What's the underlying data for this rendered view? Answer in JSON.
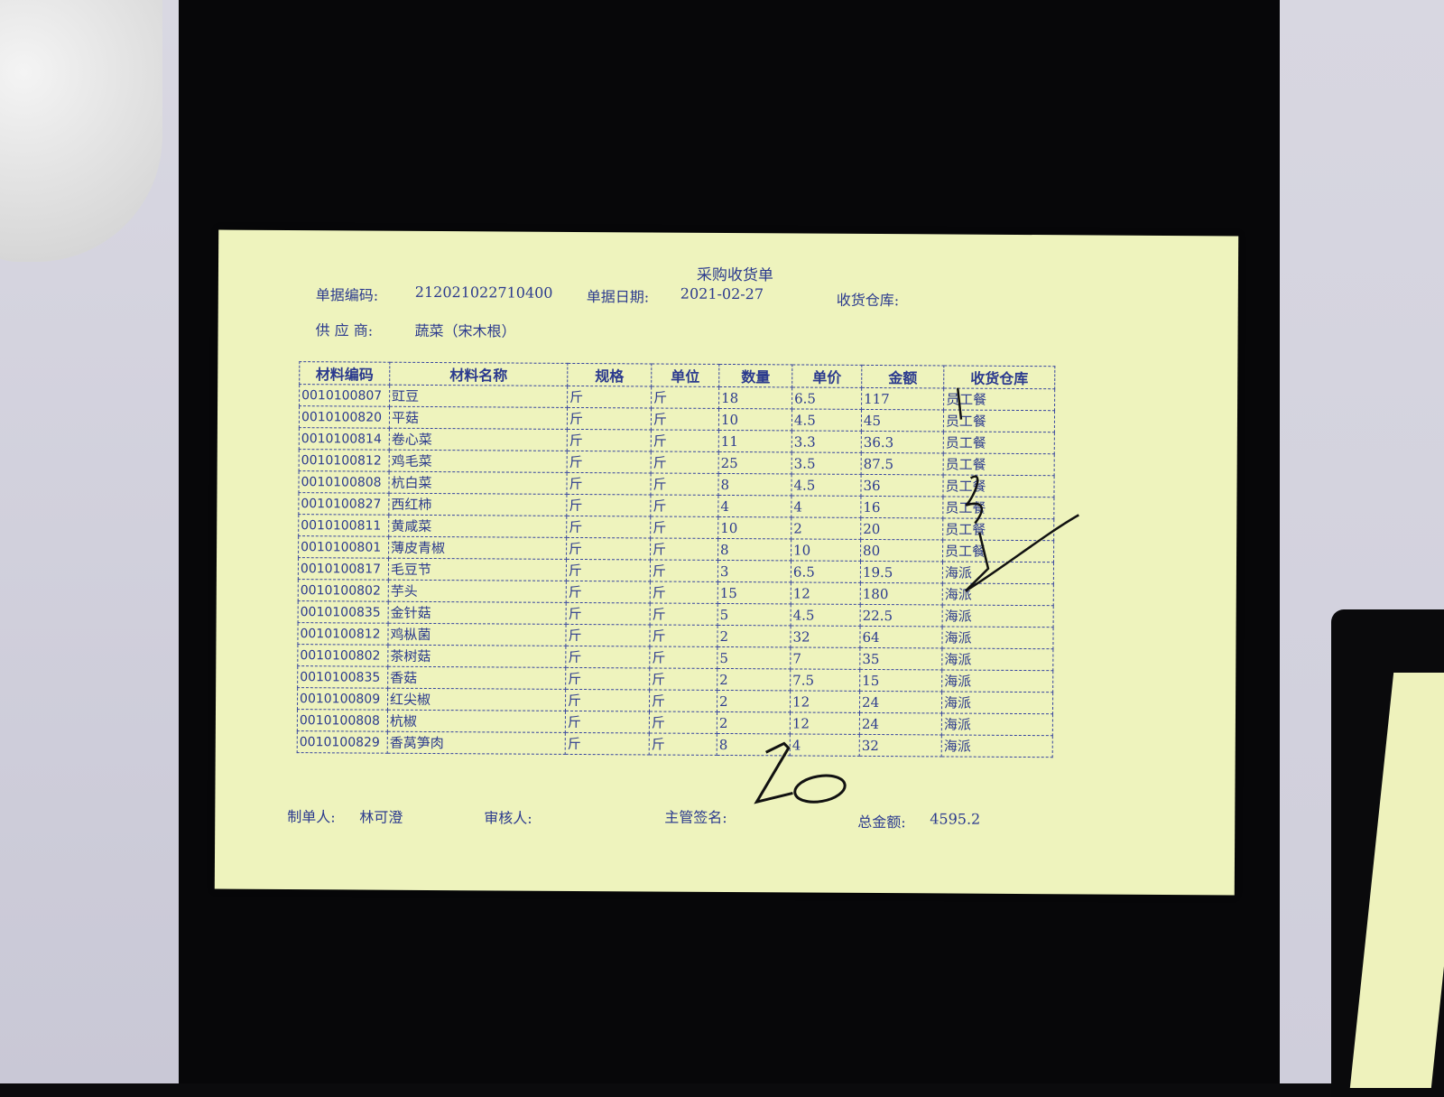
{
  "document": {
    "title": "采购收货单",
    "doc_no_label": "单据编码:",
    "doc_no": "212021022710400",
    "doc_date_label": "单据日期:",
    "doc_date": "2021-02-27",
    "warehouse_label": "收货仓库:",
    "supplier_label": "供 应 商:",
    "supplier": "蔬菜（宋木根）"
  },
  "table": {
    "headers": [
      "材料编码",
      "材料名称",
      "规格",
      "单位",
      "数量",
      "单价",
      "金额",
      "收货仓库"
    ],
    "rows": [
      [
        "0010100807",
        "豇豆",
        "斤",
        "斤",
        "18",
        "6.5",
        "117",
        "员工餐"
      ],
      [
        "0010100820",
        "平菇",
        "斤",
        "斤",
        "10",
        "4.5",
        "45",
        "员工餐"
      ],
      [
        "0010100814",
        "卷心菜",
        "斤",
        "斤",
        "11",
        "3.3",
        "36.3",
        "员工餐"
      ],
      [
        "0010100812",
        "鸡毛菜",
        "斤",
        "斤",
        "25",
        "3.5",
        "87.5",
        "员工餐"
      ],
      [
        "0010100808",
        "杭白菜",
        "斤",
        "斤",
        "8",
        "4.5",
        "36",
        "员工餐"
      ],
      [
        "0010100827",
        "西红柿",
        "斤",
        "斤",
        "4",
        "4",
        "16",
        "员工餐"
      ],
      [
        "0010100811",
        "黄咸菜",
        "斤",
        "斤",
        "10",
        "2",
        "20",
        "员工餐"
      ],
      [
        "0010100801",
        "薄皮青椒",
        "斤",
        "斤",
        "8",
        "10",
        "80",
        "员工餐"
      ],
      [
        "0010100817",
        "毛豆节",
        "斤",
        "斤",
        "3",
        "6.5",
        "19.5",
        "海派"
      ],
      [
        "0010100802",
        "芋头",
        "斤",
        "斤",
        "15",
        "12",
        "180",
        "海派"
      ],
      [
        "0010100835",
        "金针菇",
        "斤",
        "斤",
        "5",
        "4.5",
        "22.5",
        "海派"
      ],
      [
        "0010100812",
        "鸡枞菌",
        "斤",
        "斤",
        "2",
        "32",
        "64",
        "海派"
      ],
      [
        "0010100802",
        "茶树菇",
        "斤",
        "斤",
        "5",
        "7",
        "35",
        "海派"
      ],
      [
        "0010100835",
        "香菇",
        "斤",
        "斤",
        "2",
        "7.5",
        "15",
        "海派"
      ],
      [
        "0010100809",
        "红尖椒",
        "斤",
        "斤",
        "2",
        "12",
        "24",
        "海派"
      ],
      [
        "0010100808",
        "杭椒",
        "斤",
        "斤",
        "2",
        "12",
        "24",
        "海派"
      ],
      [
        "0010100829",
        "香莴笋肉",
        "斤",
        "斤",
        "8",
        "4",
        "32",
        "海派"
      ]
    ]
  },
  "footer": {
    "maker_label": "制单人:",
    "maker": "林可澄",
    "reviewer_label": "审核人:",
    "supervisor_label": "主管签名:",
    "total_label": "总金额:",
    "total": "4595.2"
  },
  "handwriting": {
    "number": "20"
  },
  "colors": {
    "paper": "#eef3bd",
    "ink": "#2b3a8e"
  }
}
